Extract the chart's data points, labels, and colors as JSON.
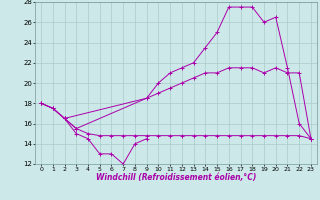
{
  "xlabel": "Windchill (Refroidissement éolien,°C)",
  "background_color": "#cce8e8",
  "grid_color": "#aacccc",
  "line_color": "#aa00aa",
  "xlim": [
    -0.5,
    23.5
  ],
  "ylim": [
    12,
    28
  ],
  "yticks": [
    12,
    14,
    16,
    18,
    20,
    22,
    24,
    26,
    28
  ],
  "xticks": [
    0,
    1,
    2,
    3,
    4,
    5,
    6,
    7,
    8,
    9,
    10,
    11,
    12,
    13,
    14,
    15,
    16,
    17,
    18,
    19,
    20,
    21,
    22,
    23
  ],
  "line1_x": [
    0,
    1,
    2,
    3,
    4,
    5,
    6,
    7,
    8,
    9
  ],
  "line1_y": [
    18,
    17.5,
    16.5,
    15.0,
    14.5,
    13.0,
    13.0,
    12.0,
    14.0,
    14.5
  ],
  "line2_x": [
    2,
    3,
    4,
    5,
    6,
    7,
    8,
    9,
    10,
    11,
    12,
    13,
    14,
    15,
    16,
    17,
    18,
    19,
    20,
    21,
    22,
    23
  ],
  "line2_y": [
    16.5,
    15.5,
    15.0,
    14.8,
    14.8,
    14.8,
    14.8,
    14.8,
    14.8,
    14.8,
    14.8,
    14.8,
    14.8,
    14.8,
    14.8,
    14.8,
    14.8,
    14.8,
    14.8,
    14.8,
    14.8,
    14.5
  ],
  "line3_x": [
    0,
    1,
    2,
    3,
    9,
    10,
    11,
    12,
    13,
    14,
    15,
    16,
    17,
    18,
    19,
    20,
    21,
    22,
    23
  ],
  "line3_y": [
    18,
    17.5,
    16.5,
    15.5,
    18.5,
    19.0,
    19.5,
    20.0,
    20.5,
    21.0,
    21.0,
    21.5,
    21.5,
    21.5,
    21.0,
    21.5,
    21.0,
    21.0,
    14.5
  ],
  "line4_x": [
    0,
    1,
    2,
    9,
    10,
    11,
    12,
    13,
    14,
    15,
    16,
    17,
    18,
    19,
    20,
    21,
    22,
    23
  ],
  "line4_y": [
    18,
    17.5,
    16.5,
    18.5,
    20.0,
    21.0,
    21.5,
    22.0,
    23.5,
    25.0,
    27.5,
    27.5,
    27.5,
    26.0,
    26.5,
    21.5,
    16.0,
    14.5
  ]
}
